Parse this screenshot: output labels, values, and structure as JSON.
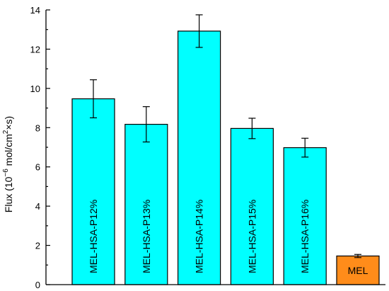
{
  "chart_data": {
    "type": "bar",
    "categories": [
      "MEL-HSA-P12%",
      "MEL-HSA-P13%",
      "MEL-HSA-P14%",
      "MEL-HSA-P15%",
      "MEL-HSA-P16%",
      "MEL"
    ],
    "values": [
      9.47,
      8.17,
      12.92,
      7.96,
      6.98,
      1.46
    ],
    "errors": [
      0.97,
      0.9,
      0.83,
      0.52,
      0.48,
      0.08
    ],
    "colors": [
      "#00ffff",
      "#00ffff",
      "#00ffff",
      "#00ffff",
      "#00ffff",
      "#ff8c1a"
    ],
    "ylabel_prefix": "Flux (10",
    "ylabel_exp1": "−6",
    "ylabel_mid": " mol/cm",
    "ylabel_exp2": "2",
    "ylabel_suffix": "×s)",
    "ylim": [
      0,
      14
    ],
    "yticks": [
      0,
      2,
      4,
      6,
      8,
      10,
      12,
      14
    ],
    "grid": false,
    "legend": "none"
  }
}
